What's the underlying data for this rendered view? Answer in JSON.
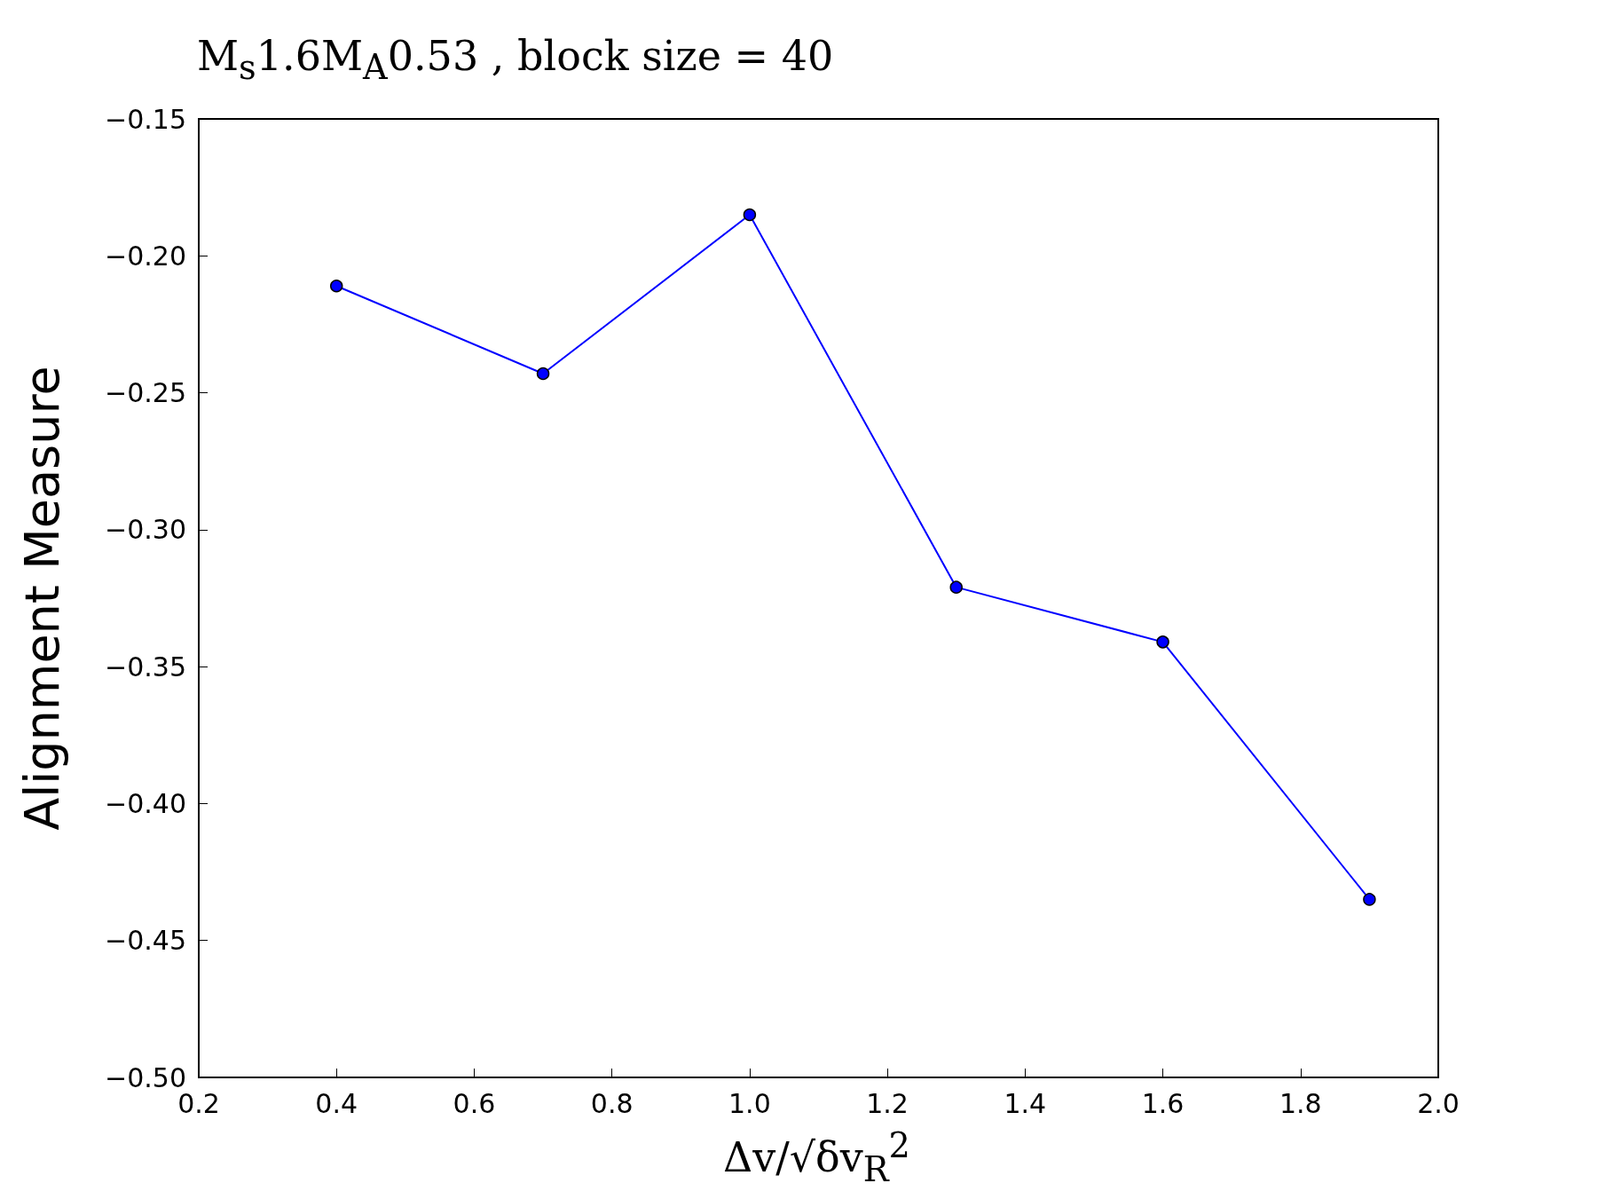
{
  "chart_data": {
    "type": "line",
    "title": "M$_{s}$1.6M$_{A}$0.53 , block size = 40",
    "xlabel": "Δv/√δv$_{R}$$^{2}$",
    "ylabel": "Alignment Measure",
    "x": [
      0.4,
      0.7,
      1.0,
      1.3,
      1.6,
      1.9
    ],
    "series": [
      {
        "color": "#0000ff",
        "values": [
          -0.211,
          -0.243,
          -0.185,
          -0.321,
          -0.341,
          -0.435
        ]
      }
    ],
    "xlim": [
      0.2,
      2.0
    ],
    "xticks": [
      0.2,
      0.4,
      0.6,
      0.8,
      {
        "value": 1,
        "label": "1.0"
      },
      1.2,
      1.4,
      1.6,
      1.8,
      {
        "value": 2,
        "label": "2.0"
      }
    ],
    "ylim": [
      -0.5,
      -0.15
    ],
    "yticks": [
      {
        "value": -0.5,
        "label": "−0.50"
      },
      -0.45,
      {
        "value": -0.4,
        "label": "−0.40"
      },
      -0.35,
      {
        "value": -0.3,
        "label": "−0.30"
      },
      -0.25,
      {
        "value": -0.2,
        "label": "−0.20"
      },
      -0.15
    ],
    "grid": false,
    "marker": "circle",
    "line_style": "solid"
  }
}
